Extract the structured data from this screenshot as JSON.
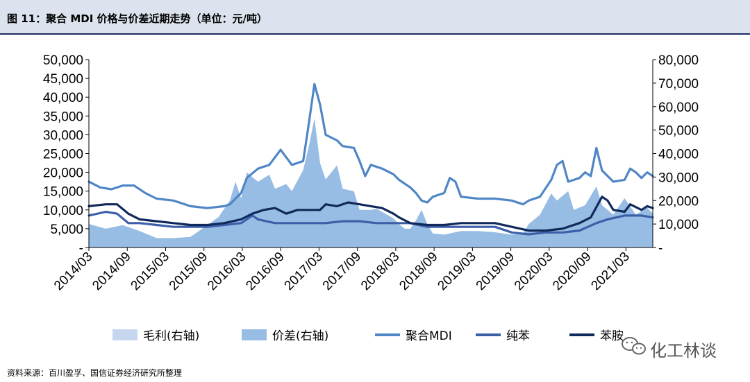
{
  "title": "图 11：聚合 MDI 价格与价差近期走势（单位：元/吨）",
  "source": "资料来源：百川盈孚、国信证券经济研究所整理",
  "watermark": "化工林谈",
  "colors": {
    "title_bar": "#dce3ee",
    "title_rule": "#1a2d5c",
    "margin_fill": "#c6d6ee",
    "spread_fill": "#97bde4",
    "mdi_line": "#4f86c6",
    "benzene_line": "#3c5fa8",
    "aniline_line": "#10295a"
  },
  "chart_data": {
    "type": "area+line",
    "x_categories": [
      "2014/03",
      "2014/09",
      "2015/03",
      "2015/09",
      "2016/03",
      "2016/09",
      "2017/03",
      "2017/09",
      "2018/03",
      "2018/09",
      "2019/03",
      "2019/09",
      "2020/03",
      "2020/09",
      "2021/03"
    ],
    "left_axis": {
      "ylim": [
        0,
        50000
      ],
      "tick_values": [
        0,
        5000,
        10000,
        15000,
        20000,
        25000,
        30000,
        35000,
        40000,
        45000,
        50000
      ],
      "tick_labels": [
        "-",
        "5,000",
        "10,000",
        "15,000",
        "20,000",
        "25,000",
        "30,000",
        "35,000",
        "40,000",
        "45,000",
        "50,000"
      ]
    },
    "right_axis": {
      "ylim": [
        0,
        80000
      ],
      "tick_values": [
        0,
        10000,
        20000,
        30000,
        40000,
        50000,
        60000,
        70000,
        80000
      ],
      "tick_labels": [
        "-",
        "10,000",
        "20,000",
        "30,000",
        "40,000",
        "50,000",
        "60,000",
        "70,000",
        "80,000"
      ]
    },
    "series": [
      {
        "name": "毛利(右轴)",
        "kind": "area",
        "axis": "right",
        "color_key": "margin_fill",
        "points": [
          [
            0,
            7000
          ],
          [
            3,
            4500
          ],
          [
            6,
            3500
          ],
          [
            9,
            3500
          ],
          [
            12,
            2000
          ],
          [
            15,
            2500
          ],
          [
            18,
            2000
          ],
          [
            21,
            4500
          ],
          [
            24,
            5500
          ],
          [
            27,
            7000
          ],
          [
            30,
            9000
          ],
          [
            33,
            9000
          ],
          [
            36,
            10000
          ],
          [
            39,
            16000
          ],
          [
            40,
            22000
          ],
          [
            42,
            16000
          ],
          [
            45,
            10500
          ],
          [
            48,
            8000
          ],
          [
            51,
            7000
          ],
          [
            54,
            7500
          ],
          [
            57,
            5000
          ],
          [
            60,
            4500
          ],
          [
            63,
            5500
          ],
          [
            66,
            3500
          ],
          [
            69,
            4000
          ],
          [
            72,
            3000
          ],
          [
            75,
            2500
          ],
          [
            78,
            4000
          ],
          [
            81,
            4500
          ],
          [
            84,
            6000
          ],
          [
            87,
            6500
          ],
          [
            90,
            9000
          ],
          [
            93,
            6000
          ],
          [
            96,
            5000
          ],
          [
            99,
            6000
          ],
          [
            100,
            5000
          ]
        ]
      },
      {
        "name": "价差(右轴)",
        "kind": "area",
        "axis": "right",
        "color_key": "spread_fill",
        "points": [
          [
            0,
            10000
          ],
          [
            3,
            8000
          ],
          [
            6,
            9500
          ],
          [
            9,
            7000
          ],
          [
            12,
            4000
          ],
          [
            15,
            4000
          ],
          [
            18,
            4500
          ],
          [
            21,
            9500
          ],
          [
            23,
            13000
          ],
          [
            25,
            20000
          ],
          [
            26,
            28000
          ],
          [
            27,
            21000
          ],
          [
            28,
            32000
          ],
          [
            30,
            28000
          ],
          [
            32,
            31000
          ],
          [
            33,
            25000
          ],
          [
            35,
            27000
          ],
          [
            36,
            24000
          ],
          [
            38,
            33000
          ],
          [
            39,
            43000
          ],
          [
            40,
            55000
          ],
          [
            41,
            36000
          ],
          [
            42,
            29000
          ],
          [
            44,
            35000
          ],
          [
            45,
            25000
          ],
          [
            47,
            24000
          ],
          [
            48,
            16000
          ],
          [
            50,
            16000
          ],
          [
            51,
            16500
          ],
          [
            54,
            12500
          ],
          [
            55,
            10000
          ],
          [
            56,
            8000
          ],
          [
            57,
            8000
          ],
          [
            58,
            11500
          ],
          [
            59,
            16000
          ],
          [
            60,
            10000
          ],
          [
            61,
            6000
          ],
          [
            63,
            5500
          ],
          [
            66,
            7000
          ],
          [
            69,
            7000
          ],
          [
            72,
            6500
          ],
          [
            75,
            5500
          ],
          [
            77,
            6000
          ],
          [
            78,
            10000
          ],
          [
            80,
            14000
          ],
          [
            82,
            23000
          ],
          [
            83,
            20000
          ],
          [
            85,
            24000
          ],
          [
            86,
            16000
          ],
          [
            88,
            18000
          ],
          [
            90,
            26000
          ],
          [
            91,
            18000
          ],
          [
            93,
            14000
          ],
          [
            95,
            21000
          ],
          [
            97,
            14000
          ],
          [
            99,
            17000
          ],
          [
            100,
            14500
          ]
        ]
      },
      {
        "name": "聚合MDI",
        "kind": "line",
        "axis": "left",
        "color_key": "mdi_line",
        "points": [
          [
            0,
            17500
          ],
          [
            2,
            16000
          ],
          [
            4,
            15500
          ],
          [
            6,
            16500
          ],
          [
            8,
            16500
          ],
          [
            10,
            14500
          ],
          [
            12,
            13000
          ],
          [
            15,
            12500
          ],
          [
            18,
            11000
          ],
          [
            21,
            10500
          ],
          [
            24,
            11000
          ],
          [
            25,
            11500
          ],
          [
            26,
            13000
          ],
          [
            27,
            14500
          ],
          [
            28,
            18500
          ],
          [
            30,
            21000
          ],
          [
            32,
            22000
          ],
          [
            34,
            26000
          ],
          [
            36,
            22000
          ],
          [
            38,
            23000
          ],
          [
            39,
            33000
          ],
          [
            40,
            43500
          ],
          [
            41,
            38000
          ],
          [
            42,
            30000
          ],
          [
            44,
            28500
          ],
          [
            45,
            27000
          ],
          [
            47,
            26500
          ],
          [
            48,
            23000
          ],
          [
            49,
            19000
          ],
          [
            50,
            22000
          ],
          [
            52,
            21000
          ],
          [
            54,
            19500
          ],
          [
            55,
            18000
          ],
          [
            56,
            17000
          ],
          [
            57,
            16000
          ],
          [
            58,
            14500
          ],
          [
            59,
            12500
          ],
          [
            60,
            12000
          ],
          [
            61,
            13500
          ],
          [
            63,
            14500
          ],
          [
            64,
            18500
          ],
          [
            65,
            17500
          ],
          [
            66,
            13500
          ],
          [
            69,
            13000
          ],
          [
            72,
            13000
          ],
          [
            75,
            12500
          ],
          [
            77,
            11500
          ],
          [
            78,
            12500
          ],
          [
            80,
            13500
          ],
          [
            82,
            18000
          ],
          [
            83,
            22000
          ],
          [
            84,
            23000
          ],
          [
            85,
            17500
          ],
          [
            87,
            18500
          ],
          [
            88,
            20000
          ],
          [
            89,
            19000
          ],
          [
            90,
            26500
          ],
          [
            91,
            20500
          ],
          [
            93,
            17500
          ],
          [
            95,
            18000
          ],
          [
            96,
            21000
          ],
          [
            97,
            20000
          ],
          [
            98,
            18500
          ],
          [
            99,
            20000
          ],
          [
            100,
            19000
          ]
        ]
      },
      {
        "name": "纯苯",
        "kind": "line",
        "axis": "left",
        "color_key": "benzene_line",
        "points": [
          [
            0,
            8500
          ],
          [
            3,
            9500
          ],
          [
            5,
            9000
          ],
          [
            7,
            6500
          ],
          [
            9,
            6500
          ],
          [
            12,
            6000
          ],
          [
            15,
            5500
          ],
          [
            18,
            5500
          ],
          [
            21,
            5500
          ],
          [
            24,
            6000
          ],
          [
            27,
            6500
          ],
          [
            29,
            8500
          ],
          [
            30,
            7500
          ],
          [
            33,
            6500
          ],
          [
            36,
            6500
          ],
          [
            39,
            6500
          ],
          [
            42,
            6500
          ],
          [
            45,
            7000
          ],
          [
            48,
            7000
          ],
          [
            51,
            6500
          ],
          [
            54,
            6500
          ],
          [
            57,
            6500
          ],
          [
            60,
            5500
          ],
          [
            63,
            5500
          ],
          [
            66,
            5500
          ],
          [
            69,
            5500
          ],
          [
            72,
            5500
          ],
          [
            75,
            4000
          ],
          [
            78,
            3500
          ],
          [
            81,
            4000
          ],
          [
            84,
            4000
          ],
          [
            87,
            4500
          ],
          [
            90,
            6500
          ],
          [
            92,
            7500
          ],
          [
            95,
            8500
          ],
          [
            98,
            8500
          ],
          [
            100,
            8000
          ]
        ]
      },
      {
        "name": "苯胺",
        "kind": "line",
        "axis": "left",
        "color_key": "aniline_line",
        "points": [
          [
            0,
            11000
          ],
          [
            3,
            11500
          ],
          [
            5,
            11500
          ],
          [
            7,
            9000
          ],
          [
            9,
            7500
          ],
          [
            12,
            7000
          ],
          [
            15,
            6500
          ],
          [
            18,
            6000
          ],
          [
            21,
            6000
          ],
          [
            24,
            6500
          ],
          [
            27,
            7500
          ],
          [
            29,
            9000
          ],
          [
            31,
            10000
          ],
          [
            33,
            10500
          ],
          [
            35,
            9000
          ],
          [
            37,
            10000
          ],
          [
            39,
            10000
          ],
          [
            41,
            10000
          ],
          [
            42,
            11500
          ],
          [
            44,
            11000
          ],
          [
            46,
            12000
          ],
          [
            48,
            11500
          ],
          [
            50,
            11000
          ],
          [
            52,
            10500
          ],
          [
            54,
            9000
          ],
          [
            55,
            8000
          ],
          [
            57,
            6500
          ],
          [
            60,
            6000
          ],
          [
            63,
            6000
          ],
          [
            66,
            6500
          ],
          [
            69,
            6500
          ],
          [
            72,
            6500
          ],
          [
            75,
            5500
          ],
          [
            78,
            4500
          ],
          [
            81,
            4500
          ],
          [
            84,
            5000
          ],
          [
            87,
            6500
          ],
          [
            89,
            8000
          ],
          [
            91,
            13500
          ],
          [
            92,
            12500
          ],
          [
            93,
            10000
          ],
          [
            95,
            9500
          ],
          [
            96,
            11500
          ],
          [
            98,
            10000
          ],
          [
            99,
            11000
          ],
          [
            100,
            10500
          ]
        ]
      }
    ],
    "legend_position": "bottom",
    "grid": false
  }
}
